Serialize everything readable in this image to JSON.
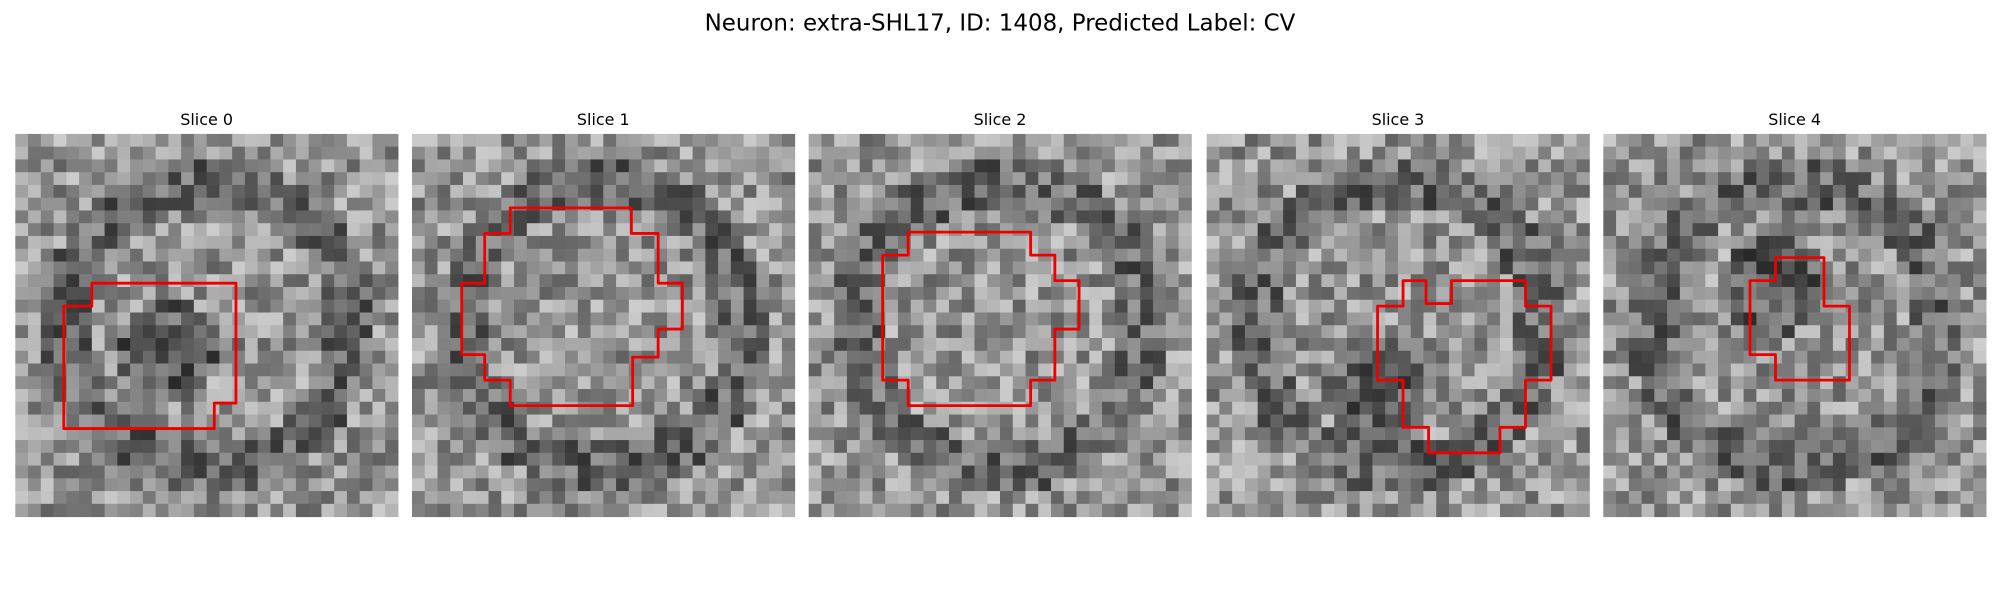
{
  "header": {
    "title": "Neuron: extra-SHL17, ID: 1408, Predicted Label: CV"
  },
  "panels": [
    {
      "title": "Slice 0"
    },
    {
      "title": "Slice 1"
    },
    {
      "title": "Slice 2"
    },
    {
      "title": "Slice 3"
    },
    {
      "title": "Slice 4"
    }
  ]
}
